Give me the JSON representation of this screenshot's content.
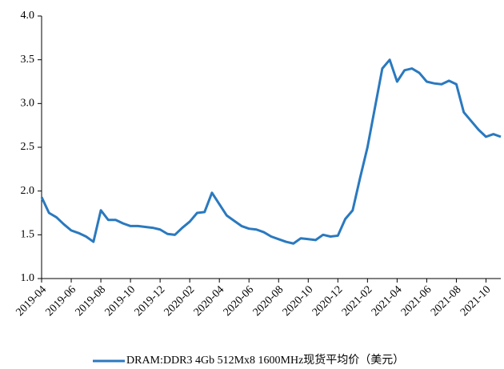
{
  "chart_data": {
    "type": "line",
    "categories": [
      "2019-04",
      null,
      null,
      null,
      "2019-06",
      null,
      null,
      null,
      "2019-08",
      null,
      null,
      null,
      "2019-10",
      null,
      null,
      null,
      "2019-12",
      null,
      null,
      null,
      "2020-02",
      null,
      null,
      null,
      "2020-04",
      null,
      null,
      null,
      "2020-06",
      null,
      null,
      null,
      "2020-08",
      null,
      null,
      null,
      "2020-10",
      null,
      null,
      null,
      "2020-12",
      null,
      null,
      null,
      "2021-02",
      null,
      null,
      null,
      "2021-04",
      null,
      null,
      null,
      "2021-06",
      null,
      null,
      null,
      "2021-08",
      null,
      null,
      null,
      "2021-10",
      null,
      null
    ],
    "series": [
      {
        "name": "DRAM:DDR3 4Gb 512Mx8 1600MHz现货平均价（美元）",
        "color": "#2a79bf",
        "values": [
          1.93,
          1.75,
          1.7,
          1.62,
          1.55,
          1.52,
          1.48,
          1.42,
          1.78,
          1.67,
          1.67,
          1.63,
          1.6,
          1.6,
          1.59,
          1.58,
          1.56,
          1.51,
          1.5,
          1.58,
          1.65,
          1.75,
          1.76,
          1.98,
          1.85,
          1.72,
          1.66,
          1.6,
          1.57,
          1.56,
          1.53,
          1.48,
          1.45,
          1.42,
          1.4,
          1.46,
          1.45,
          1.44,
          1.5,
          1.48,
          1.49,
          1.68,
          1.78,
          2.15,
          2.5,
          2.95,
          3.4,
          3.5,
          3.25,
          3.38,
          3.4,
          3.35,
          3.25,
          3.23,
          3.22,
          3.26,
          3.22,
          2.9,
          2.8,
          2.7,
          2.62,
          2.65,
          2.62
        ]
      }
    ],
    "ylim": [
      1.0,
      4.0
    ],
    "yticks": [
      {
        "value": 1.0,
        "label": "1.0"
      },
      {
        "value": 1.5,
        "label": "1.5"
      },
      {
        "value": 2.0,
        "label": "2.0"
      },
      {
        "value": 2.5,
        "label": "2.5"
      },
      {
        "value": 3.0,
        "label": "3.0"
      },
      {
        "value": 3.5,
        "label": "3.5"
      },
      {
        "value": 4.0,
        "label": "4.0"
      }
    ],
    "legend": "bottom"
  }
}
